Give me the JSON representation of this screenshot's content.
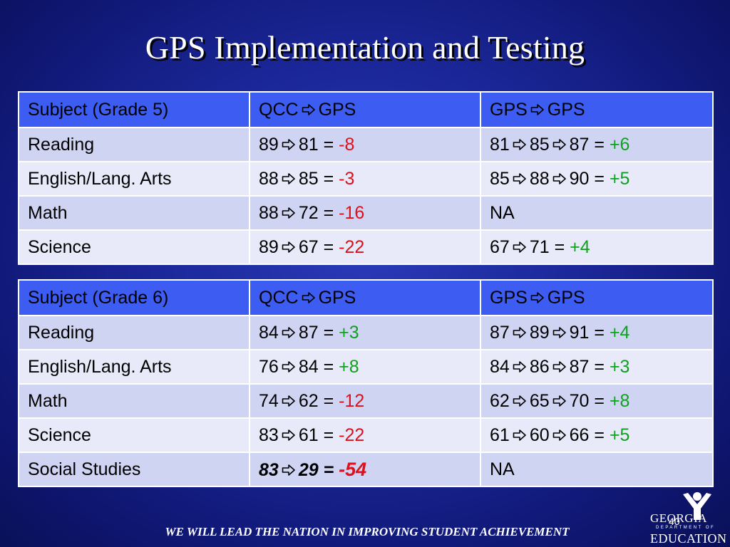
{
  "title": "GPS Implementation and Testing",
  "colors": {
    "negative": "#e0101a",
    "positive": "#10a020",
    "header_bg": "#3c5cf2",
    "row_odd": "#cfd4f3",
    "row_even": "#e8eaf9"
  },
  "arrow_icon": "outline-right-arrow-icon",
  "tables": [
    {
      "headers": [
        "Subject (Grade 5)",
        "QCC",
        "GPS",
        "GPS",
        "GPS"
      ],
      "rows": [
        {
          "subject": "Reading",
          "qcc_gps": [
            "89",
            "81"
          ],
          "qcc_change": "-8",
          "gps_gps": [
            "81",
            "85",
            "87"
          ],
          "gps_change": "+6"
        },
        {
          "subject": "English/Lang. Arts",
          "qcc_gps": [
            "88",
            "85"
          ],
          "qcc_change": "-3",
          "gps_gps": [
            "85",
            "88",
            "90"
          ],
          "gps_change": "+5"
        },
        {
          "subject": "Math",
          "qcc_gps": [
            "88",
            "72"
          ],
          "qcc_change": "-16",
          "gps_gps_text": "NA"
        },
        {
          "subject": "Science",
          "qcc_gps": [
            "89",
            "67"
          ],
          "qcc_change": "-22",
          "gps_gps": [
            "67",
            "71"
          ],
          "gps_change": "+4"
        }
      ]
    },
    {
      "headers": [
        "Subject (Grade 6)",
        "QCC",
        "GPS",
        "GPS",
        "GPS"
      ],
      "rows": [
        {
          "subject": "Reading",
          "qcc_gps": [
            "84",
            "87"
          ],
          "qcc_change": "+3",
          "gps_gps": [
            "87",
            "89",
            "91"
          ],
          "gps_change": "+4"
        },
        {
          "subject": "English/Lang. Arts",
          "qcc_gps": [
            "76",
            "84"
          ],
          "qcc_change": "+8",
          "gps_gps": [
            "84",
            "86",
            "87"
          ],
          "gps_change": "+3"
        },
        {
          "subject": "Math",
          "qcc_gps": [
            "74",
            "62"
          ],
          "qcc_change": "-12",
          "gps_gps": [
            "62",
            "65",
            "70"
          ],
          "gps_change": "+8"
        },
        {
          "subject": "Science",
          "qcc_gps": [
            "83",
            "61"
          ],
          "qcc_change": "-22",
          "gps_gps": [
            "61",
            "60",
            "66"
          ],
          "gps_change": "+5"
        },
        {
          "subject": "Social Studies",
          "qcc_gps": [
            "83",
            "29"
          ],
          "qcc_change": "-54",
          "gps_gps_text": "NA",
          "emphasized": true
        }
      ]
    }
  ],
  "footer": "WE WILL LEAD THE NATION IN IMPROVING STUDENT ACHIEVEMENT",
  "slide_number": "40",
  "logo": {
    "line1": "GEORGIA",
    "line2": "DEPARTMENT OF",
    "line3": "EDUCATION"
  }
}
